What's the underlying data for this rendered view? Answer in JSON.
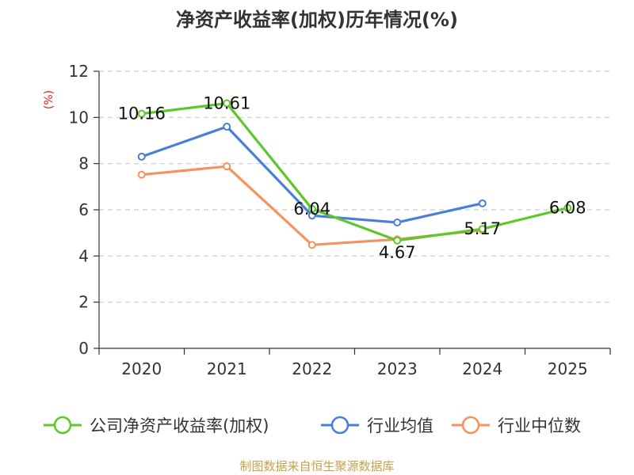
{
  "chart_data": {
    "type": "line",
    "title": "净资产收益率(加权)历年情况(%)",
    "ylabel": "(%)",
    "xlabel": "",
    "categories": [
      "2020",
      "2021",
      "2022",
      "2023",
      "2024",
      "2025"
    ],
    "ylim": [
      0,
      12
    ],
    "yticks": [
      0,
      2,
      4,
      6,
      8,
      10,
      12
    ],
    "grid": true,
    "legend_position": "bottom",
    "series": [
      {
        "name": "公司净资产收益率(加权)",
        "color": "#5cc82a",
        "values": [
          10.16,
          10.61,
          6.04,
          4.67,
          5.17,
          6.08
        ],
        "labels": true
      },
      {
        "name": "行业均值",
        "color": "#4a7fd8",
        "values": [
          8.3,
          9.6,
          5.75,
          5.45,
          6.28,
          null
        ],
        "labels": false
      },
      {
        "name": "行业中位数",
        "color": "#f59260",
        "values": [
          7.52,
          7.88,
          4.48,
          4.72,
          5.12,
          null
        ],
        "labels": false
      }
    ]
  },
  "source": "制图数据来自恒生聚源数据库"
}
